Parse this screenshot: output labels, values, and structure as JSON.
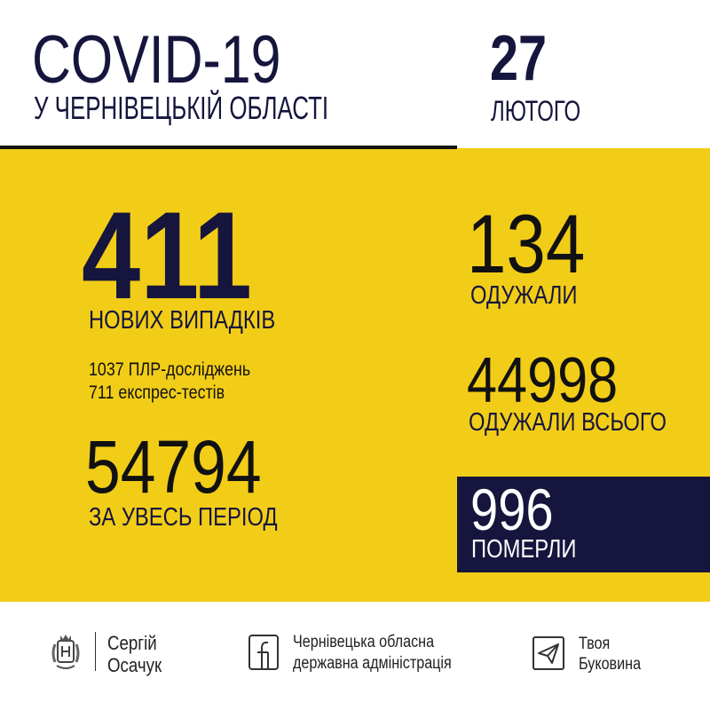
{
  "header": {
    "title": "COVID-19",
    "subtitle": "У ЧЕРНІВЕЦЬКІЙ ОБЛАСТІ",
    "day": "27",
    "month": "ЛЮТОГО"
  },
  "stats": {
    "new_cases": {
      "value": "411",
      "label": "НОВИХ ВИПАДКІВ"
    },
    "tests": [
      "1037 ПЛР-досліджень",
      "711 експрес-тестів"
    ],
    "total": {
      "value": "54794",
      "label": "ЗА УВЕСЬ ПЕРІОД"
    },
    "recovered": {
      "value": "134",
      "label": "ОДУЖАЛИ"
    },
    "recovered_total": {
      "value": "44998",
      "label": "ОДУЖАЛИ ВСЬОГО"
    },
    "deaths": {
      "value": "996",
      "label": "ПОМЕРЛИ"
    }
  },
  "footer": {
    "person": [
      "Сергій",
      "Осачук"
    ],
    "facebook": [
      "Чернівецька обласна",
      "державна адміністрація"
    ],
    "telegram": [
      "Твоя",
      "Буковина"
    ]
  },
  "colors": {
    "yellow": "#f2cd17",
    "navy": "#15153d"
  }
}
